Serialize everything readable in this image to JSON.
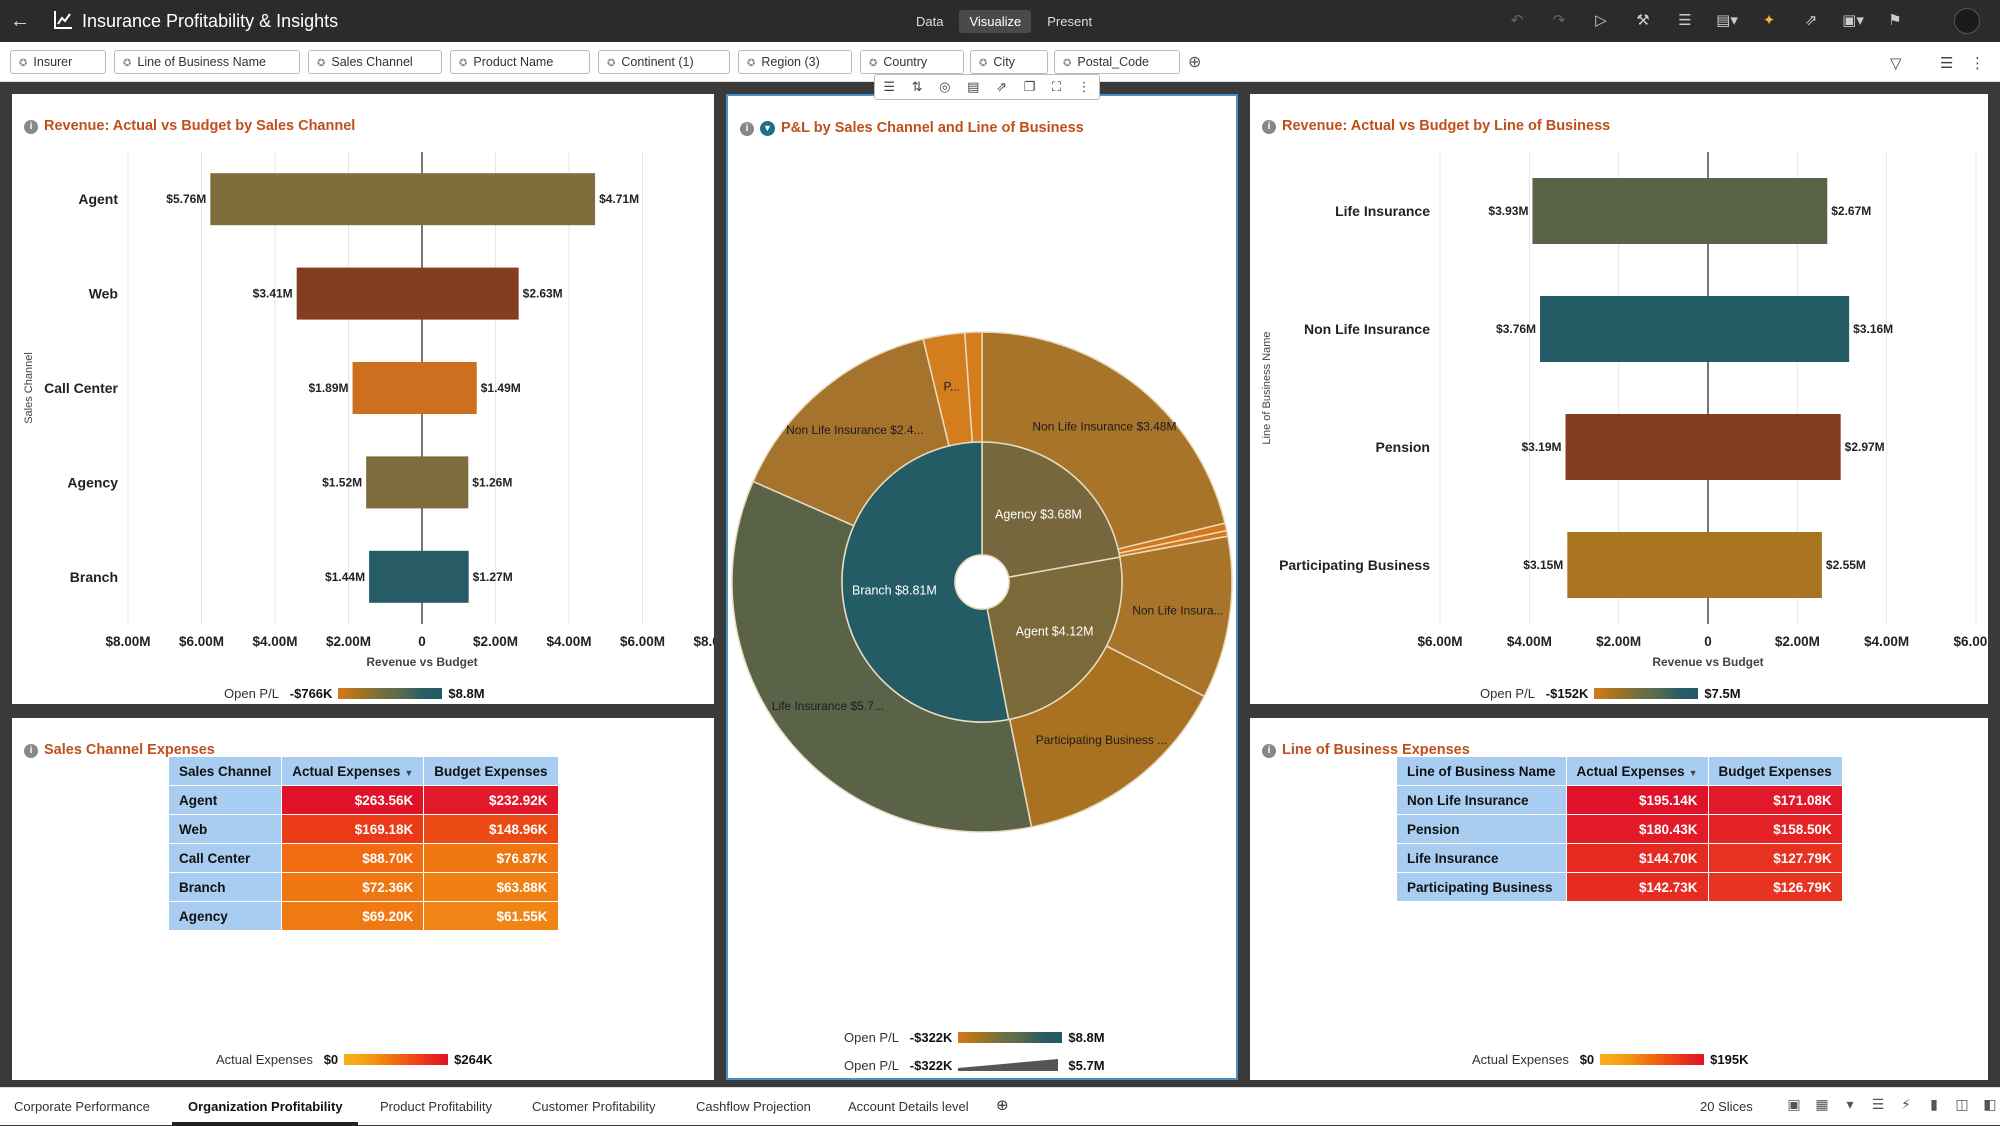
{
  "header": {
    "back_icon": "arrow-left-icon",
    "title": "Insurance Profitability & Insights",
    "modes": [
      {
        "label": "Data",
        "active": false
      },
      {
        "label": "Visualize",
        "active": true
      },
      {
        "label": "Present",
        "active": false
      }
    ],
    "toolbar_icons": [
      "undo-icon",
      "redo-icon",
      "play-icon",
      "tools-icon",
      "data-icon",
      "comment-icon",
      "auto-insights-icon",
      "export-icon",
      "save-icon",
      "bookmark-icon"
    ]
  },
  "filters": {
    "chips": [
      "Insurer",
      "Line of Business Name",
      "Sales Channel",
      "Product Name",
      "Continent (1)",
      "Region (3)",
      "Country",
      "City",
      "Postal_Code"
    ]
  },
  "panels": {
    "rev_sales": {
      "title": "Revenue: Actual vs Budget by Sales Channel",
      "ylabel": "Sales Channel",
      "xlabel": "Revenue vs Budget",
      "legend": {
        "label": "Open P/L",
        "min": "-$766K",
        "max": "$8.8M"
      }
    },
    "pl": {
      "title": "P&L by Sales Channel and Line of Business",
      "legend1": {
        "label": "Open P/L",
        "min": "-$322K",
        "max": "$8.8M"
      },
      "legend2": {
        "label": "Open P/L",
        "min": "-$322K",
        "max": "$5.7M"
      }
    },
    "rev_lob": {
      "title": "Revenue: Actual vs Budget by Line of Business",
      "ylabel": "Line of Business Name",
      "xlabel": "Revenue vs Budget",
      "legend": {
        "label": "Open P/L",
        "min": "-$152K",
        "max": "$7.5M"
      }
    },
    "sales_exp": {
      "title": "Sales Channel Expenses",
      "legend": {
        "label": "Actual Expenses",
        "min": "$0",
        "max": "$264K"
      }
    },
    "lob_exp": {
      "title": "Line of Business Expenses",
      "legend": {
        "label": "Actual Expenses",
        "min": "$0",
        "max": "$195K"
      }
    }
  },
  "chart_data": [
    {
      "type": "bar",
      "id": "rev_sales",
      "orientation": "horizontal-diverging",
      "categories": [
        "Agent",
        "Web",
        "Call Center",
        "Agency",
        "Branch"
      ],
      "series": [
        {
          "values": [
            -5.76,
            -3.41,
            -1.89,
            -1.52,
            -1.44
          ],
          "labels": [
            "$5.76M",
            "$3.41M",
            "$1.89M",
            "$1.52M",
            "$1.44M"
          ]
        },
        {
          "values": [
            4.71,
            2.63,
            1.49,
            1.26,
            1.27
          ],
          "labels": [
            "$4.71M",
            "$2.63M",
            "$1.49M",
            "$1.26M",
            "$1.27M"
          ]
        }
      ],
      "colors": [
        "#7f6e3b",
        "#833e22",
        "#cc6f1e",
        "#7d6d3c",
        "#275b66"
      ],
      "xticks": [
        "$8.00M",
        "$6.00M",
        "$4.00M",
        "$2.00M",
        "0",
        "$2.00M",
        "$4.00M",
        "$6.00M",
        "$8.00M"
      ],
      "xlim": [
        -8,
        8
      ]
    },
    {
      "type": "bar",
      "id": "rev_lob",
      "orientation": "horizontal-diverging",
      "categories": [
        "Life Insurance",
        "Non Life Insurance",
        "Pension",
        "Participating Business"
      ],
      "series": [
        {
          "values": [
            -3.93,
            -3.76,
            -3.19,
            -3.15
          ],
          "labels": [
            "$3.93M",
            "$3.76M",
            "$3.19M",
            "$3.15M"
          ]
        },
        {
          "values": [
            2.67,
            3.16,
            2.97,
            2.55
          ],
          "labels": [
            "$2.67M",
            "$3.16M",
            "$2.97M",
            "$2.55M"
          ]
        }
      ],
      "colors": [
        "#5a6248",
        "#245c66",
        "#833e22",
        "#a8741f"
      ],
      "xticks": [
        "$6.00M",
        "$4.00M",
        "$2.00M",
        "0",
        "$2.00M",
        "$4.00M",
        "$6.00M"
      ],
      "xlim": [
        -6,
        6
      ]
    },
    {
      "type": "pie",
      "id": "pl_sunburst",
      "inner": [
        {
          "label": "Agency $3.68M",
          "value": 3.68,
          "color": "#76673e"
        },
        {
          "label": "Agent $4.12M",
          "value": 4.12,
          "color": "#7b6939"
        },
        {
          "label": "Branch $8.81M",
          "value": 8.81,
          "color": "#245c66"
        }
      ],
      "outer": [
        {
          "label": "Non Life Insurance $3.48M",
          "value": 3.48,
          "color": "#a7742a"
        },
        {
          "label": "",
          "value": 0.08,
          "color": "#d5771b"
        },
        {
          "label": "",
          "value": 0.06,
          "color": "#d5771b"
        },
        {
          "label": "Non Life Insura...",
          "value": 1.72,
          "color": "#a8742a"
        },
        {
          "label": "Participating Business ...",
          "value": 2.34,
          "color": "#a97222"
        },
        {
          "label": "Life Insurance $5.7...",
          "value": 5.7,
          "color": "#5a6248"
        },
        {
          "label": "Non Life Insurance $2.4...",
          "value": 2.4,
          "color": "#a6732c"
        },
        {
          "label": "P...",
          "value": 0.44,
          "color": "#d47d1f"
        },
        {
          "label": "",
          "value": 0.18,
          "color": "#d67c1d"
        }
      ]
    },
    {
      "type": "table",
      "id": "sales_exp",
      "columns": [
        "Sales Channel",
        "Actual Expenses",
        "Budget Expenses"
      ],
      "rows": [
        {
          "name": "Agent",
          "actual": "$263.56K",
          "budget": "$232.92K",
          "actual_color": "#e0122a",
          "budget_color": "#e2192a"
        },
        {
          "name": "Web",
          "actual": "$169.18K",
          "budget": "$148.96K",
          "actual_color": "#ea3a17",
          "budget_color": "#ec4a14"
        },
        {
          "name": "Call Center",
          "actual": "$88.70K",
          "budget": "$76.87K",
          "actual_color": "#f06b12",
          "budget_color": "#f07612"
        },
        {
          "name": "Branch",
          "actual": "$72.36K",
          "budget": "$63.88K",
          "actual_color": "#f07612",
          "budget_color": "#f07f14"
        },
        {
          "name": "Agency",
          "actual": "$69.20K",
          "budget": "$61.55K",
          "actual_color": "#f07a12",
          "budget_color": "#f08414"
        }
      ]
    },
    {
      "type": "table",
      "id": "lob_exp",
      "columns": [
        "Line of Business Name",
        "Actual Expenses",
        "Budget Expenses"
      ],
      "rows": [
        {
          "name": "Non Life Insurance",
          "actual": "$195.14K",
          "budget": "$171.08K",
          "actual_color": "#e0122a",
          "budget_color": "#e2192a"
        },
        {
          "name": "Pension",
          "actual": "$180.43K",
          "budget": "$158.50K",
          "actual_color": "#e31a28",
          "budget_color": "#e52326"
        },
        {
          "name": "Life Insurance",
          "actual": "$144.70K",
          "budget": "$127.79K",
          "actual_color": "#e62a22",
          "budget_color": "#e73222"
        },
        {
          "name": "Participating Business",
          "actual": "$142.73K",
          "budget": "$126.79K",
          "actual_color": "#e62c22",
          "budget_color": "#e73422"
        }
      ]
    }
  ],
  "floating_toolbar_icons": [
    "data-icon",
    "sort-icon",
    "target-icon",
    "chart-icon",
    "export-icon",
    "copy-icon",
    "maximize-icon",
    "more-icon"
  ],
  "footer": {
    "tabs": [
      {
        "label": "Corporate Performance",
        "active": false
      },
      {
        "label": "Organization Profitability",
        "active": true
      },
      {
        "label": "Product Profitability",
        "active": false
      },
      {
        "label": "Customer Profitability",
        "active": false
      },
      {
        "label": "Cashflow Projection",
        "active": false
      },
      {
        "label": "Account Details level",
        "active": false
      }
    ],
    "slices": "20 Slices"
  }
}
